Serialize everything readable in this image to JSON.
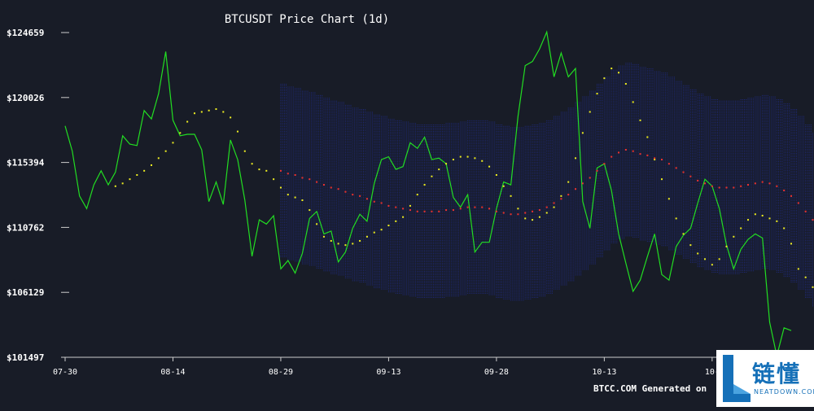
{
  "chart_data": {
    "type": "line",
    "title": "BTCUSDT Price Chart (1d)",
    "footer": "BTCC.COM Generated on",
    "ylim": [
      101497,
      124659
    ],
    "yticks": [
      "$101497",
      "$106129",
      "$110762",
      "$115394",
      "$120026",
      "$124659"
    ],
    "ytick_values": [
      101497,
      106129,
      110762,
      115394,
      120026,
      124659
    ],
    "xticks": [
      "07-30",
      "08-14",
      "08-29",
      "09-13",
      "09-28",
      "10-13",
      "10-"
    ],
    "xtick_index": [
      0,
      15,
      30,
      45,
      60,
      75,
      90
    ],
    "colors": {
      "background": "#181c27",
      "price": "#22dd22",
      "ma_short": "#eeee22",
      "ma_long": "#ee3333",
      "band": "#1f2a80",
      "axis": "#cccccc",
      "text": "#ffffff"
    },
    "series": [
      {
        "values": [
          118000,
          116200,
          113000,
          112100,
          113800,
          114800,
          113800,
          114700,
          117300,
          116700,
          116600,
          119100,
          118500,
          120300,
          123300,
          118400,
          117300,
          117400,
          117400,
          116300,
          112600,
          114000,
          112400,
          117000,
          115600,
          112700,
          108700,
          111300,
          111000,
          111600,
          107800,
          108400,
          107500,
          108900,
          111400,
          111900,
          110300,
          110500,
          108300,
          109000,
          110700,
          111700,
          111200,
          113900,
          115600,
          115800,
          114900,
          115100,
          116800,
          116400,
          117200,
          115600,
          115700,
          115300,
          112900,
          112200,
          113100,
          109000,
          109700,
          109700,
          112100,
          114000,
          113800,
          118700,
          122300,
          122600,
          123500,
          124700,
          121500,
          123200,
          121500,
          122100,
          112600,
          110700,
          115000,
          115300,
          113400,
          110300,
          108200,
          106200,
          107000,
          108700,
          110300,
          107400,
          107000,
          109400,
          110200,
          110700,
          112500,
          114200,
          113700,
          112100,
          109500,
          107800,
          109200,
          109900,
          110300,
          110000,
          104000,
          101600,
          103600,
          103400
        ]
      },
      {
        "start": 7,
        "values": [
          113700,
          113900,
          114200,
          114500,
          114800,
          115200,
          115700,
          116200,
          116800,
          117500,
          118300,
          118900,
          119000,
          119100,
          119200,
          119000,
          118600,
          117600,
          116200,
          115300,
          114900,
          114800,
          114200,
          113600,
          113100,
          112900,
          112700,
          112000,
          111000,
          110100,
          109800,
          109600,
          109500,
          109600,
          109800,
          110100,
          110400,
          110600,
          110900,
          111200,
          111500,
          112300,
          113100,
          113800,
          114400,
          114900,
          115300,
          115600,
          115800,
          115800,
          115700,
          115500,
          115100,
          114500,
          113700,
          113000,
          112100,
          111400,
          111300,
          111500,
          111800,
          112200,
          113000,
          114000,
          115700,
          117500,
          119000,
          120300,
          121400,
          122100,
          121800,
          121000,
          119700,
          118400,
          117200,
          115600,
          114200,
          112800,
          111400,
          110300,
          109500,
          108900,
          108500,
          108100,
          108500,
          109400,
          110100,
          110700,
          111300,
          111700,
          111600,
          111400,
          111200,
          110700,
          109600,
          107800,
          107200,
          106500
        ]
      },
      {
        "start": 30,
        "values": [
          114800,
          114600,
          114500,
          114300,
          114200,
          114000,
          113800,
          113600,
          113500,
          113300,
          113100,
          113000,
          112800,
          112600,
          112500,
          112300,
          112200,
          112100,
          112000,
          111900,
          111900,
          111900,
          111900,
          112000,
          112000,
          112100,
          112200,
          112200,
          112200,
          112100,
          111900,
          111800,
          111700,
          111700,
          111800,
          111900,
          112000,
          112200,
          112500,
          112800,
          113100,
          113500,
          113900,
          114300,
          114800,
          115300,
          115800,
          116100,
          116300,
          116200,
          116000,
          115900,
          115700,
          115600,
          115300,
          115000,
          114700,
          114400,
          114100,
          113900,
          113700,
          113600,
          113600,
          113600,
          113700,
          113800,
          113900,
          114000,
          113900,
          113700,
          113400,
          113000,
          112500,
          111900,
          111300,
          110600
        ]
      }
    ]
  }
}
